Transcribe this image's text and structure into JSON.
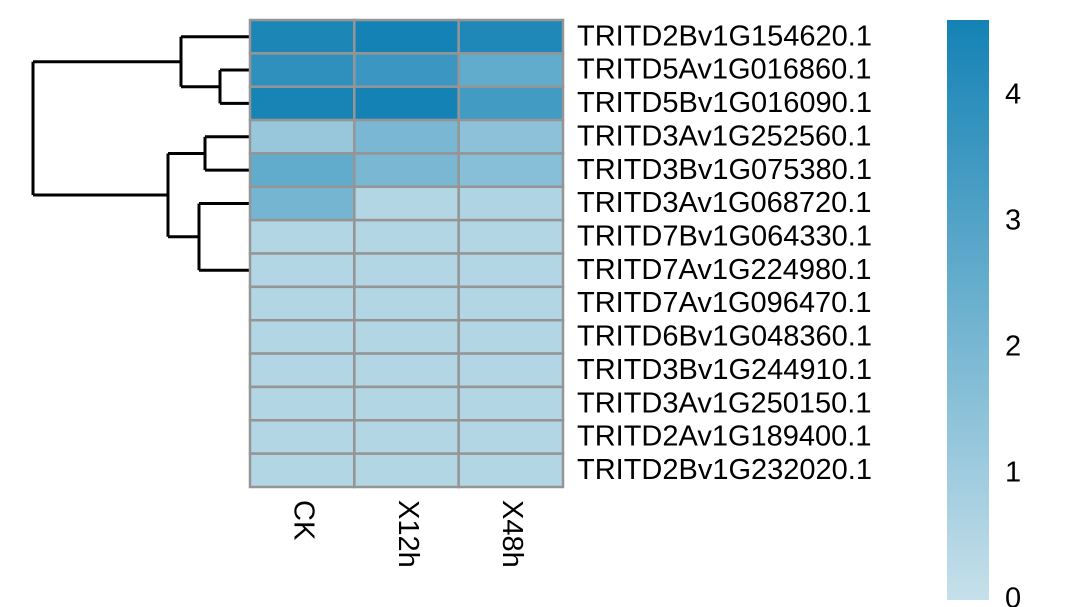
{
  "chart_data": {
    "type": "heatmap",
    "rows": [
      "TRITD2Bv1G154620.1",
      "TRITD5Av1G016860.1",
      "TRITD5Bv1G016090.1",
      "TRITD3Av1G252560.1",
      "TRITD3Bv1G075380.1",
      "TRITD3Av1G068720.1",
      "TRITD7Bv1G064330.1",
      "TRITD7Av1G224980.1",
      "TRITD7Av1G096470.1",
      "TRITD6Bv1G048360.1",
      "TRITD3Bv1G244910.1",
      "TRITD3Av1G250150.1",
      "TRITD2Av1G189400.1",
      "TRITD2Bv1G232020.1"
    ],
    "columns": [
      "CK",
      "X12h",
      "X48h"
    ],
    "values": [
      [
        4.4,
        4.6,
        4.3
      ],
      [
        3.9,
        3.6,
        2.6
      ],
      [
        4.5,
        4.6,
        3.4
      ],
      [
        1.2,
        2.0,
        1.5
      ],
      [
        2.6,
        2.0,
        1.6
      ],
      [
        2.1,
        0.5,
        0.6
      ],
      [
        0.5,
        0.5,
        0.5
      ],
      [
        0.5,
        0.5,
        0.5
      ],
      [
        0.5,
        0.5,
        0.5
      ],
      [
        0.5,
        0.5,
        0.5
      ],
      [
        0.5,
        0.5,
        0.5
      ],
      [
        0.5,
        0.5,
        0.5
      ],
      [
        0.5,
        0.5,
        0.5
      ],
      [
        0.5,
        0.5,
        0.5
      ]
    ],
    "color_low": "#c6e0ea",
    "color_high": "#1482b5",
    "colorbar_lim": [
      0,
      4.6
    ],
    "colorbar_ticks": [
      0,
      1,
      2,
      3,
      4
    ]
  }
}
